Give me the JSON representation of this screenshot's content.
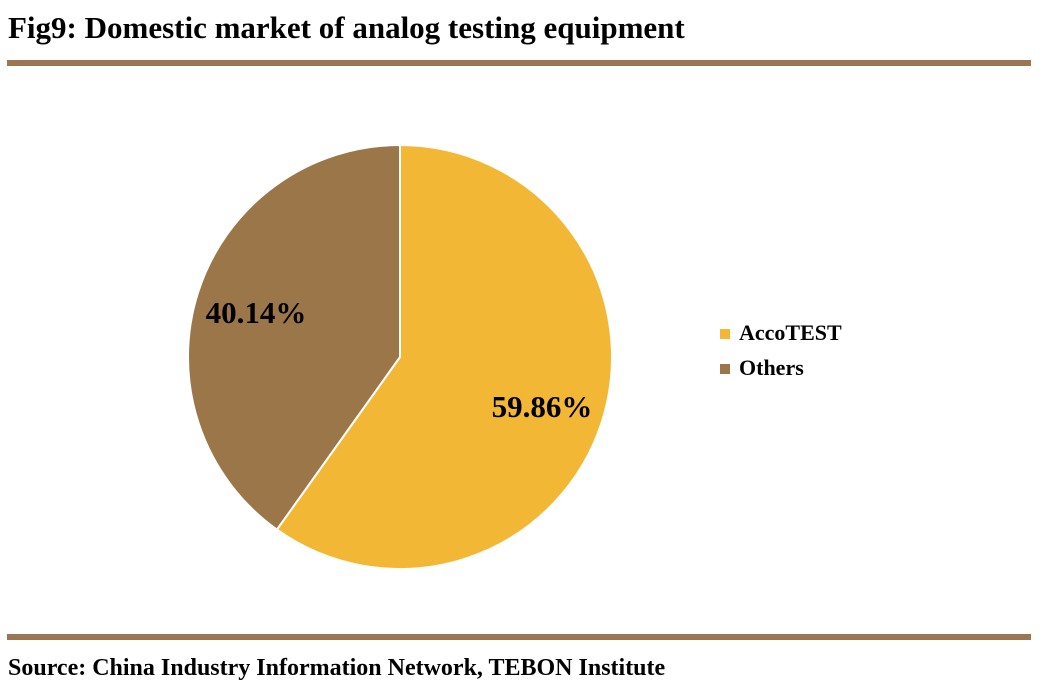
{
  "title": "Fig9: Domestic market of analog testing equipment",
  "source": "Source: China Industry Information Network, TEBON Institute",
  "colors": {
    "rule": "#9B7653",
    "AccoTEST": "#F2B734",
    "Others": "#9B7649"
  },
  "chart_data": {
    "type": "pie",
    "title": "",
    "slices": [
      {
        "name": "AccoTEST",
        "value": 59.86,
        "label": "59.86%",
        "color": "#F2B734"
      },
      {
        "name": "Others",
        "value": 40.14,
        "label": "40.14%",
        "color": "#9B7649"
      }
    ],
    "start": "12 o'clock",
    "direction": "clockwise",
    "legend": {
      "placement": "right",
      "entries": [
        "AccoTEST",
        "Others"
      ]
    }
  }
}
